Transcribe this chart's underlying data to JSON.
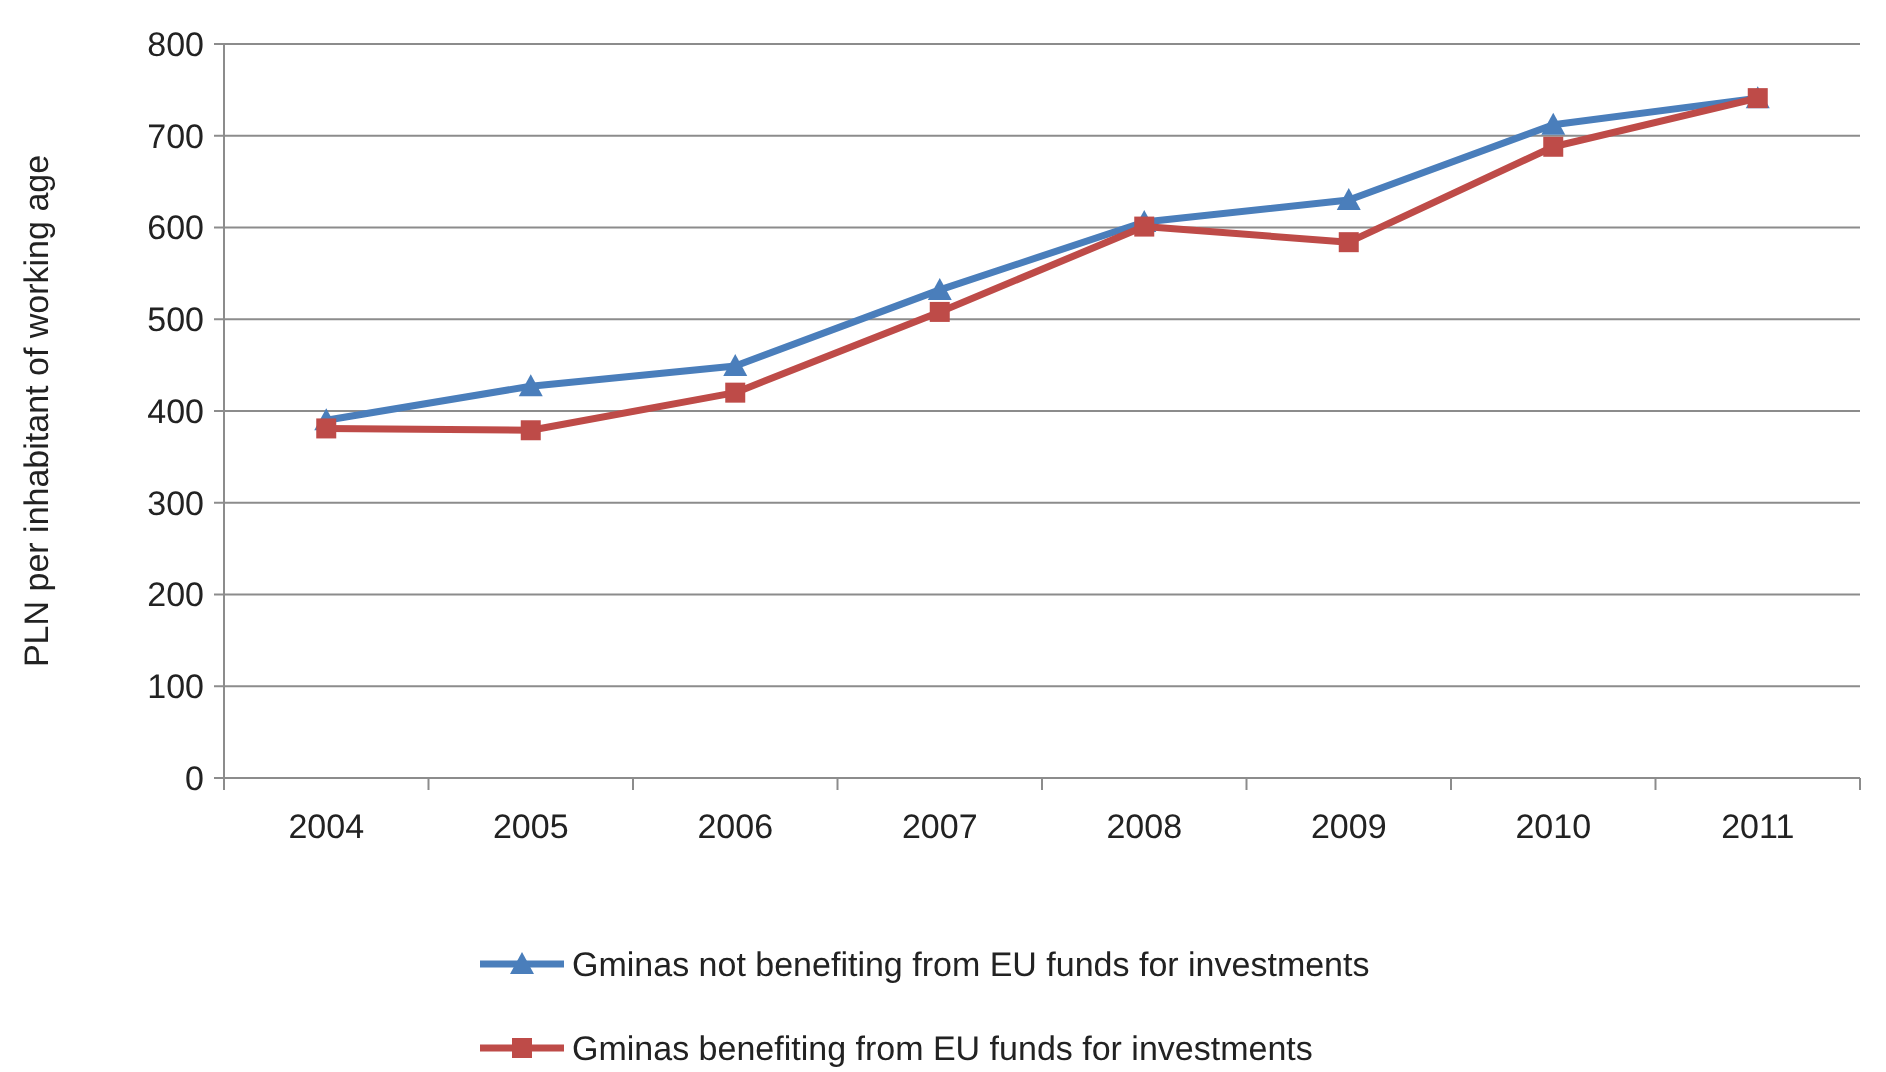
{
  "chart_data": {
    "type": "line",
    "ylabel": "PLN per inhabitant of working age",
    "categories": [
      "2004",
      "2005",
      "2006",
      "2007",
      "2008",
      "2009",
      "2010",
      "2011"
    ],
    "series": [
      {
        "name": "Gminas not benefiting from EU funds for investments",
        "color": "#4a7ebb",
        "marker": "triangle",
        "values": [
          390,
          427,
          449,
          532,
          606,
          630,
          712,
          741
        ]
      },
      {
        "name": "Gminas benefiting from EU funds for investments",
        "color": "#be4b48",
        "marker": "square",
        "values": [
          381,
          379,
          420,
          508,
          601,
          584,
          688,
          741
        ]
      }
    ],
    "ylim": [
      0,
      800
    ],
    "yticks": [
      0,
      100,
      200,
      300,
      400,
      500,
      600,
      700,
      800
    ],
    "grid": "y",
    "legend": "bottom",
    "line_style": "solid"
  }
}
